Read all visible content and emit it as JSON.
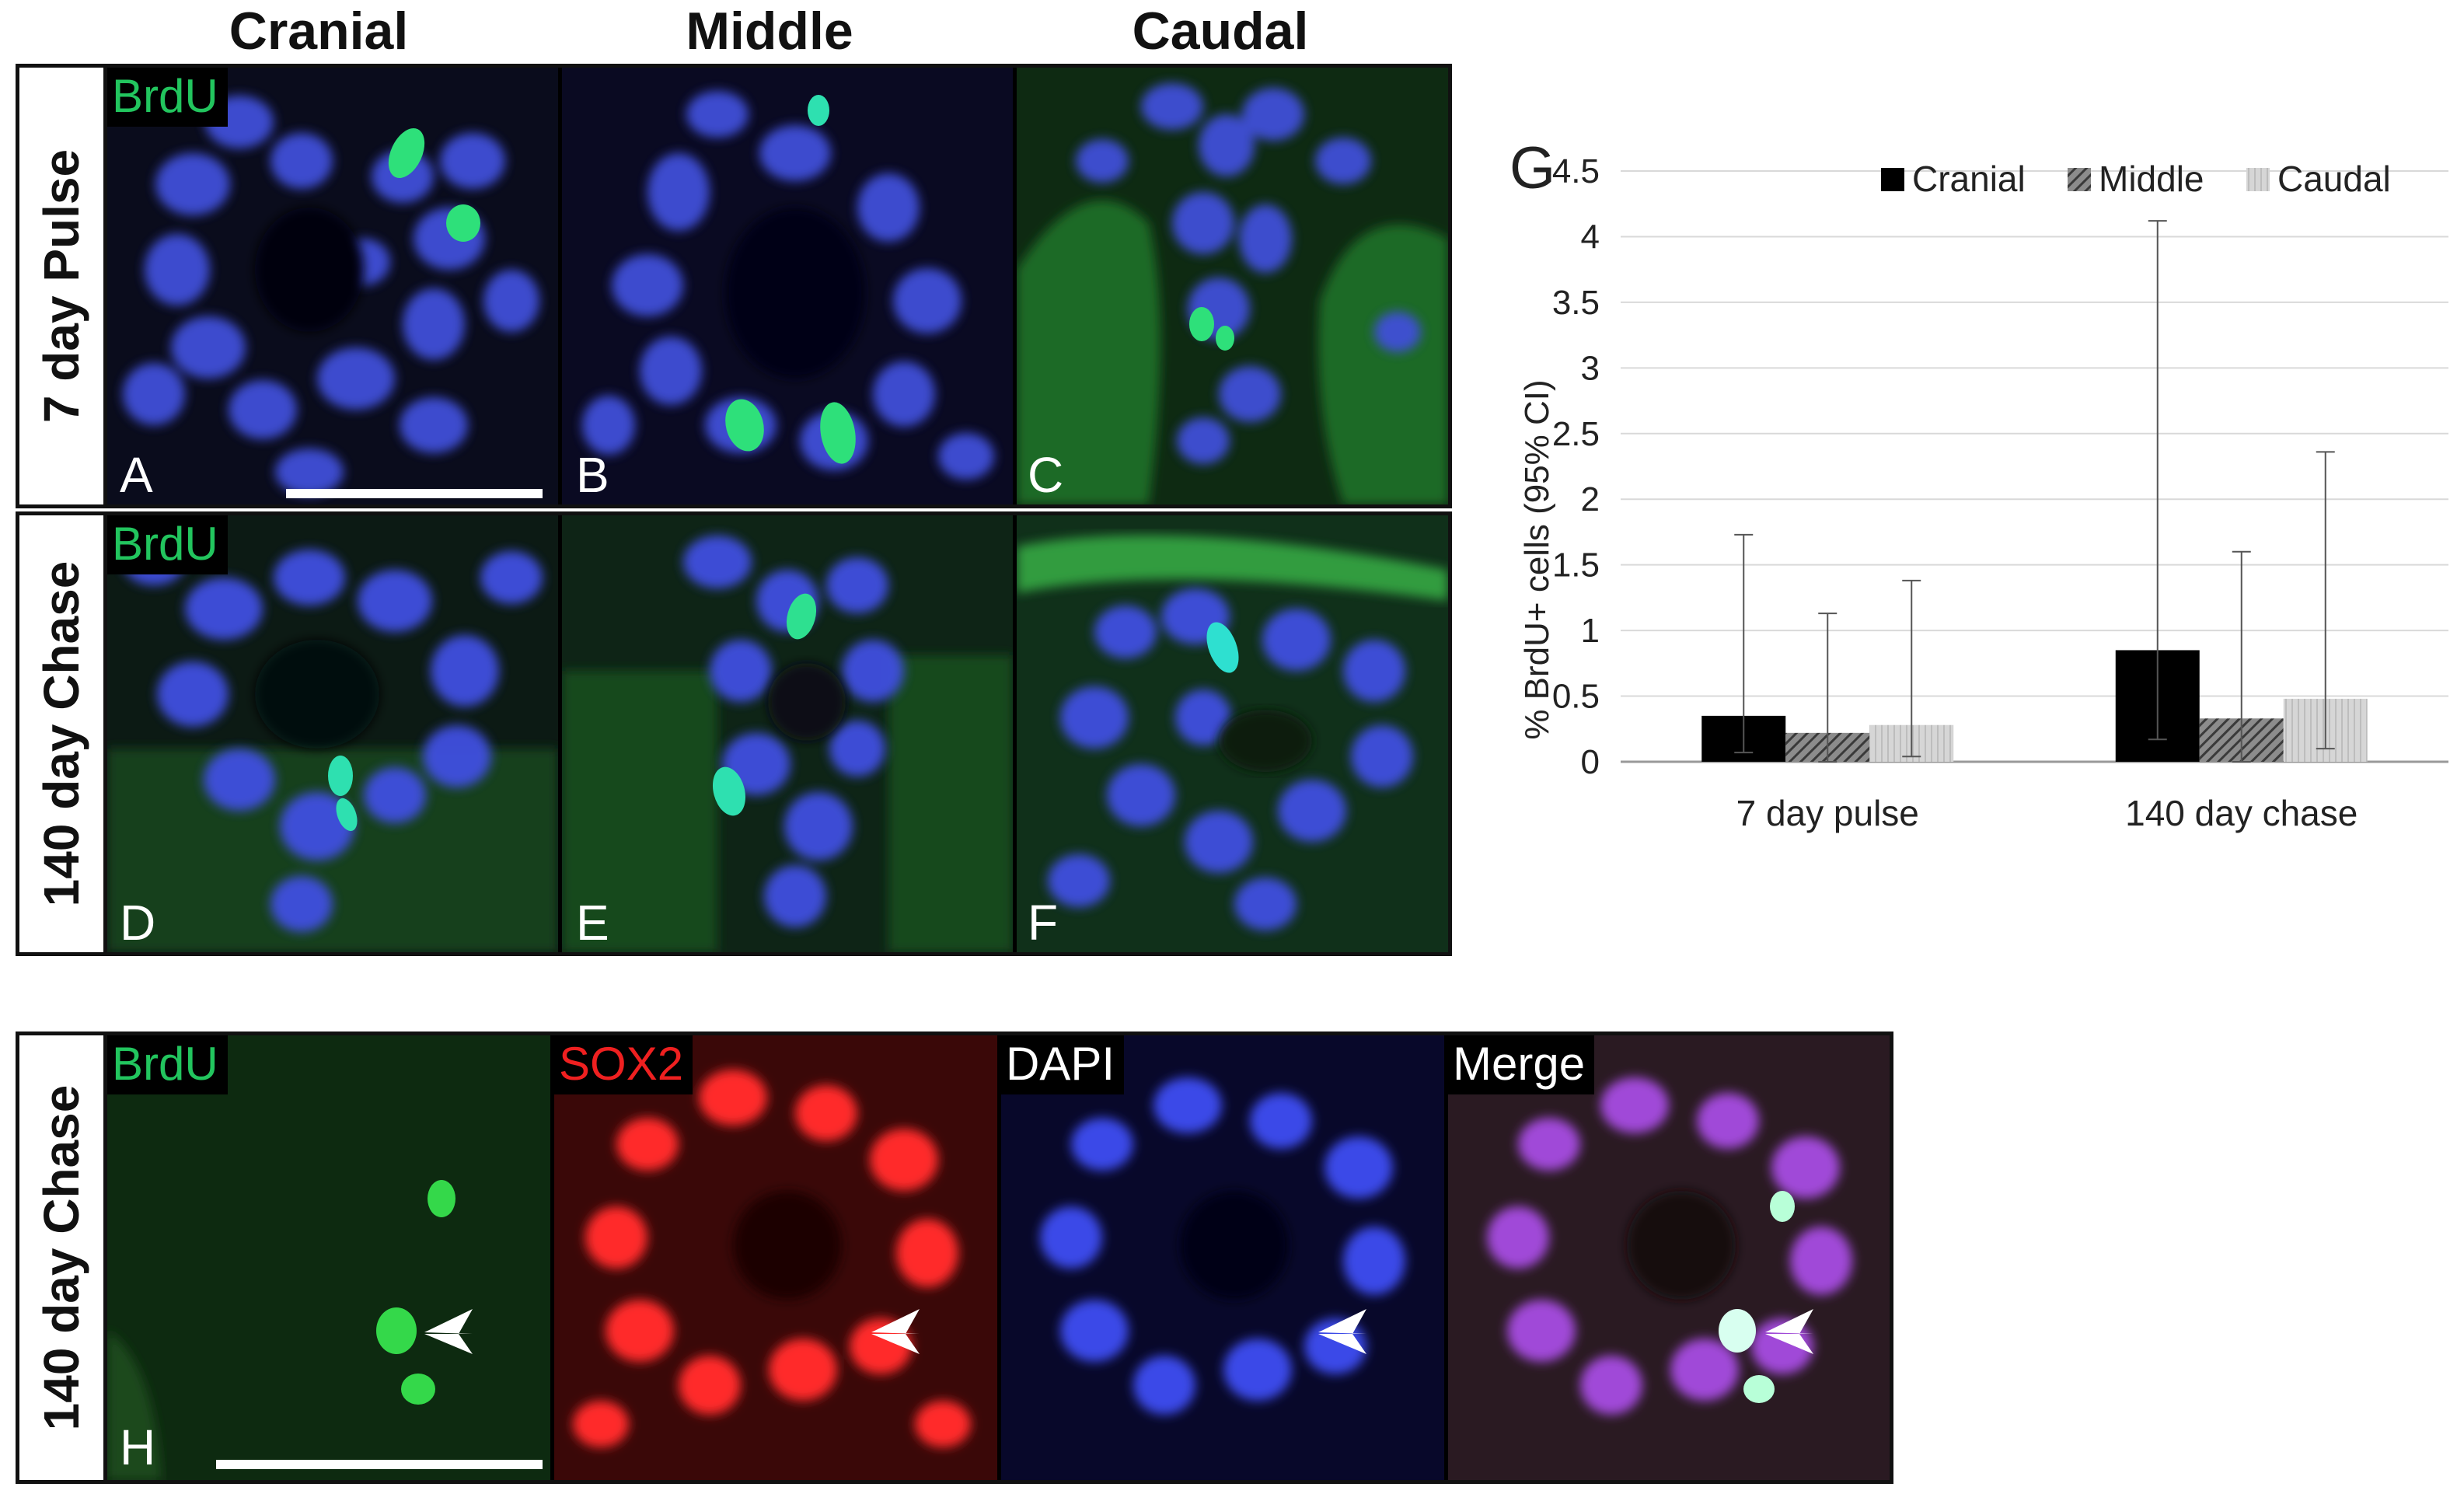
{
  "column_headers": [
    "Cranial",
    "Middle",
    "Caudal"
  ],
  "row_labels": {
    "pulse": "7 day Pulse",
    "chase": "140 day Chase",
    "bottom": "140 day Chase"
  },
  "panel_tag": "BrdU",
  "panel_letters": [
    "A",
    "B",
    "C",
    "D",
    "E",
    "F",
    "H"
  ],
  "stain_labels": [
    "BrdU",
    "SOX2",
    "DAPI",
    "Merge"
  ],
  "colors": {
    "brdu_green": "#22c55e",
    "sox2_red": "#ef2020",
    "dapi_blue": "#3355ff",
    "merge_white": "#ffffff",
    "cranial": "#000000",
    "middle": "#3a3a3a",
    "caudal": "#bdbdbd"
  },
  "chart_data": {
    "type": "bar",
    "panel_label": "G",
    "categories": [
      "7 day pulse",
      "140 day chase"
    ],
    "series": [
      {
        "name": "Cranial",
        "values": [
          0.35,
          0.85
        ],
        "ci_low": [
          0.07,
          0.17
        ],
        "ci_high": [
          1.73,
          4.12
        ]
      },
      {
        "name": "Middle",
        "values": [
          0.22,
          0.33
        ],
        "ci_low": [
          0.0,
          0.0
        ],
        "ci_high": [
          1.13,
          1.6
        ]
      },
      {
        "name": "Caudal",
        "values": [
          0.28,
          0.48
        ],
        "ci_low": [
          0.04,
          0.1
        ],
        "ci_high": [
          1.38,
          2.36
        ]
      }
    ],
    "ylabel": "% BrdU+ cells (95% CI)",
    "ylim": [
      0,
      4.5
    ],
    "yticks": [
      "0",
      "0.5",
      "1",
      "1.5",
      "2",
      "2.5",
      "3",
      "3.5",
      "4",
      "4.5"
    ],
    "grid": true,
    "legend_position": "top-right"
  }
}
